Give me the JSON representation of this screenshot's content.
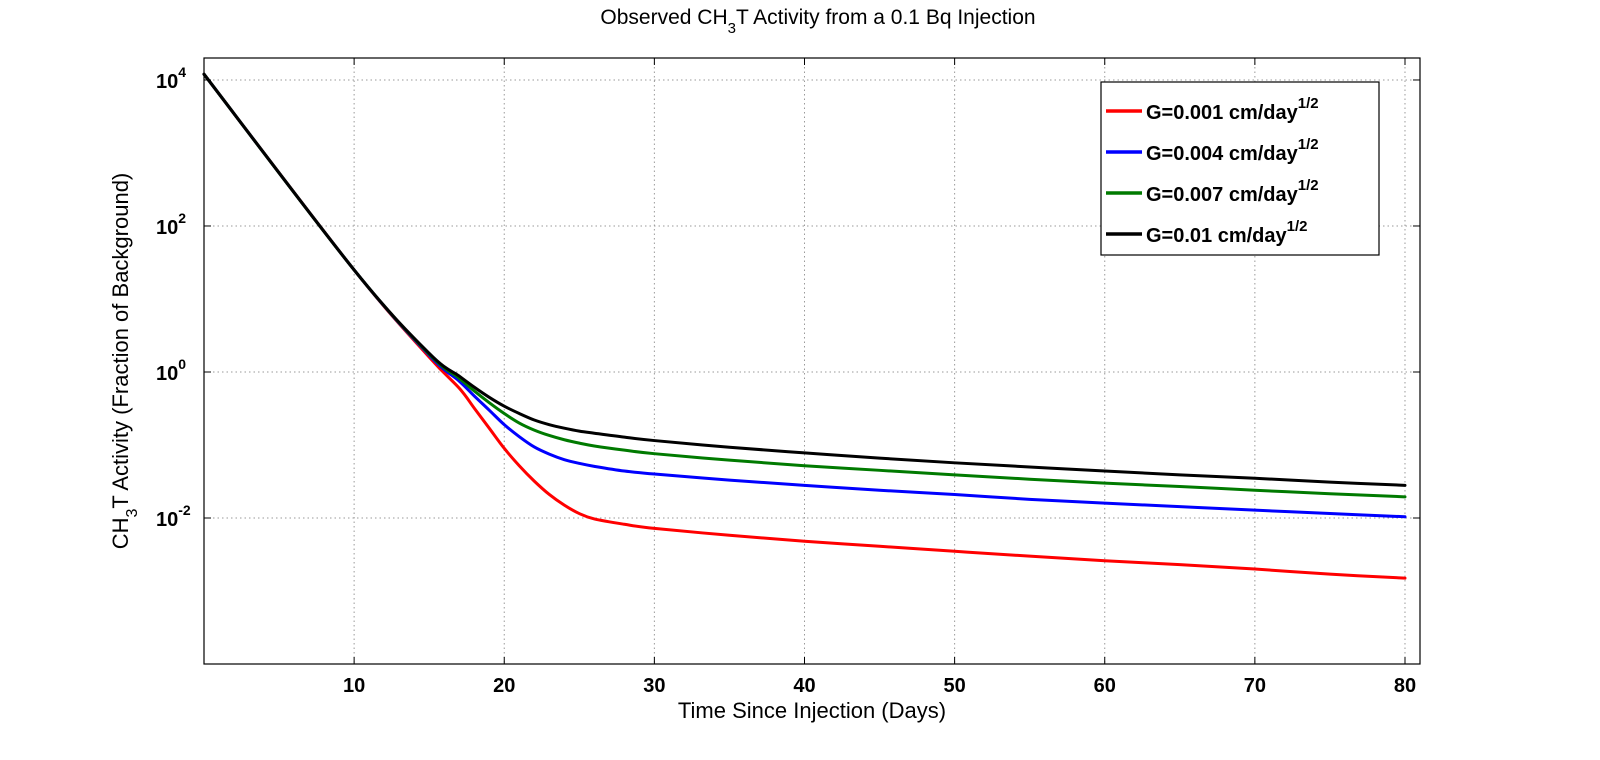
{
  "chart_data": {
    "type": "line",
    "title": {
      "prefix": "Observed CH",
      "subscript": "3",
      "suffix": "T Activity from a 0.1 Bq Injection"
    },
    "xlabel": "Time Since Injection (Days)",
    "ylabel": {
      "prefix": "CH",
      "subscript": "3",
      "suffix": "T Activity (Fraction of Background)"
    },
    "xlim": [
      0,
      81
    ],
    "ylim": [
      0.0001,
      20000
    ],
    "yscale": "log",
    "grid": true,
    "legend_position": "top-right",
    "x_ticks": [
      {
        "value": 10,
        "label": "10"
      },
      {
        "value": 20,
        "label": "20"
      },
      {
        "value": 30,
        "label": "30"
      },
      {
        "value": 40,
        "label": "40"
      },
      {
        "value": 50,
        "label": "50"
      },
      {
        "value": 60,
        "label": "60"
      },
      {
        "value": 70,
        "label": "70"
      },
      {
        "value": 80,
        "label": "80"
      }
    ],
    "y_ticks": [
      {
        "value": 0.01,
        "base": "10",
        "exponent": "-2"
      },
      {
        "value": 1,
        "base": "10",
        "exponent": "0"
      },
      {
        "value": 100,
        "base": "10",
        "exponent": "2"
      },
      {
        "value": 10000,
        "base": "10",
        "exponent": "4"
      }
    ],
    "series": [
      {
        "name": {
          "text": "G=0.001 cm/day",
          "superscript": "1/2"
        },
        "color": "#ff0000",
        "x": [
          0,
          10,
          15,
          17,
          18,
          19,
          20,
          21,
          22,
          23,
          24,
          25,
          26,
          28,
          30,
          35,
          40,
          45,
          50,
          55,
          60,
          65,
          70,
          75,
          80
        ],
        "y": [
          12000,
          25,
          1.6,
          0.6,
          0.32,
          0.17,
          0.09,
          0.052,
          0.032,
          0.021,
          0.015,
          0.0115,
          0.0097,
          0.0082,
          0.0072,
          0.0058,
          0.0048,
          0.0041,
          0.0035,
          0.003,
          0.0026,
          0.0023,
          0.002,
          0.0017,
          0.0015
        ]
      },
      {
        "name": {
          "text": "G=0.004 cm/day",
          "superscript": "1/2"
        },
        "color": "#0000ff",
        "x": [
          0,
          10,
          15,
          17,
          18,
          19,
          20,
          21,
          22,
          23,
          24,
          25,
          26,
          28,
          30,
          35,
          40,
          45,
          50,
          55,
          60,
          65,
          70,
          75,
          80
        ],
        "y": [
          12000,
          25,
          1.7,
          0.75,
          0.47,
          0.3,
          0.19,
          0.13,
          0.094,
          0.075,
          0.063,
          0.056,
          0.051,
          0.044,
          0.04,
          0.033,
          0.028,
          0.024,
          0.021,
          0.018,
          0.016,
          0.0143,
          0.0128,
          0.0115,
          0.0104
        ]
      },
      {
        "name": {
          "text": "G=0.007 cm/day",
          "superscript": "1/2"
        },
        "color": "#007a00",
        "x": [
          0,
          10,
          15,
          17,
          18,
          19,
          20,
          21,
          22,
          23,
          24,
          25,
          26,
          28,
          30,
          35,
          40,
          45,
          50,
          55,
          60,
          65,
          70,
          75,
          80
        ],
        "y": [
          12000,
          25,
          1.75,
          0.82,
          0.55,
          0.38,
          0.27,
          0.2,
          0.16,
          0.135,
          0.118,
          0.106,
          0.097,
          0.085,
          0.076,
          0.062,
          0.052,
          0.045,
          0.039,
          0.034,
          0.03,
          0.027,
          0.024,
          0.0215,
          0.0195
        ]
      },
      {
        "name": {
          "text": "G=0.01 cm/day",
          "superscript": "1/2"
        },
        "color": "#000000",
        "x": [
          0,
          10,
          15,
          17,
          18,
          19,
          20,
          21,
          22,
          23,
          24,
          25,
          26,
          28,
          30,
          35,
          40,
          45,
          50,
          55,
          60,
          65,
          70,
          75,
          80
        ],
        "y": [
          12000,
          25,
          1.8,
          0.88,
          0.62,
          0.45,
          0.34,
          0.27,
          0.22,
          0.19,
          0.17,
          0.155,
          0.145,
          0.128,
          0.115,
          0.093,
          0.078,
          0.066,
          0.057,
          0.05,
          0.044,
          0.039,
          0.035,
          0.031,
          0.028
        ]
      }
    ]
  }
}
